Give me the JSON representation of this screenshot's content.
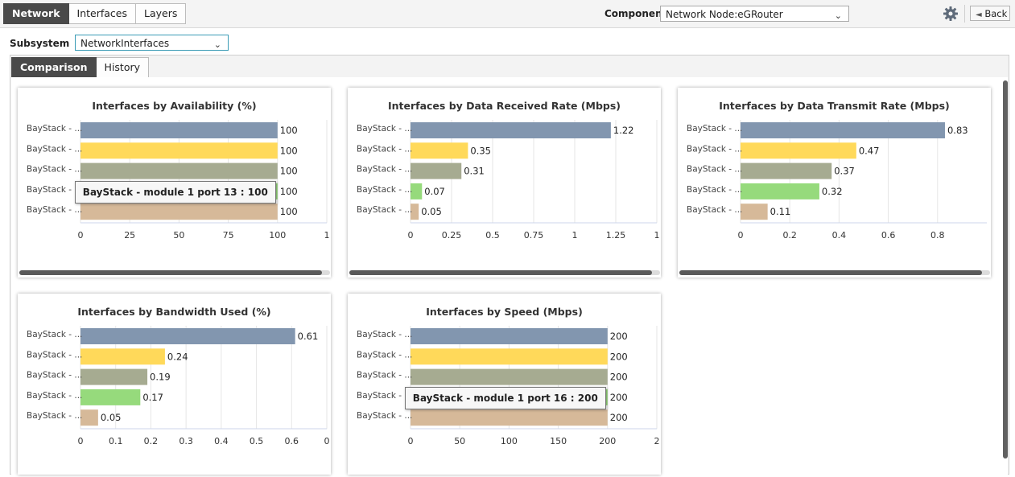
{
  "top_tabs": [
    "Network",
    "Interfaces",
    "Layers"
  ],
  "component": {
    "label": "Component",
    "value": "Network Node:eGRouter"
  },
  "back_label": "Back",
  "subsystem": {
    "label": "Subsystem",
    "value": "NetworkInterfaces"
  },
  "view_tabs": [
    "Comparison",
    "History"
  ],
  "colors": {
    "bar_colors": [
      "#8296af",
      "#ffd95a",
      "#a6ab91",
      "#96da7c",
      "#d6b999"
    ],
    "active_tab": "#4a4a4a"
  },
  "chart_data": [
    {
      "type": "bar",
      "title": "Interfaces by Availability (%)",
      "categories": [
        "BayStack - ...",
        "BayStack - ...",
        "BayStack - ...",
        "BayStack - ...",
        "BayStack - ..."
      ],
      "values": [
        100,
        100,
        100,
        100,
        100
      ],
      "value_labels": [
        "100",
        "100",
        "100",
        "100",
        "100"
      ],
      "ticks": [
        "0",
        "25",
        "50",
        "75",
        "100",
        "1"
      ],
      "xlim": [
        0,
        125
      ],
      "tooltip": {
        "text": "BayStack - module 1 port 13 : 100",
        "row": 3
      }
    },
    {
      "type": "bar",
      "title": "Interfaces by Data Received Rate (Mbps)",
      "categories": [
        "BayStack - ...",
        "BayStack - ...",
        "BayStack - ...",
        "BayStack - ...",
        "BayStack - ..."
      ],
      "values": [
        1.22,
        0.35,
        0.31,
        0.07,
        0.05
      ],
      "value_labels": [
        "1.22",
        "0.35",
        "0.31",
        "0.07",
        "0.05"
      ],
      "ticks": [
        "0",
        "0.25",
        "0.5",
        "0.75",
        "1",
        "1.25",
        "1"
      ],
      "xlim": [
        0,
        1.5
      ]
    },
    {
      "type": "bar",
      "title": "Interfaces by Data Transmit Rate (Mbps)",
      "categories": [
        "BayStack - ...",
        "BayStack - ...",
        "BayStack - ...",
        "BayStack - ...",
        "BayStack - ..."
      ],
      "values": [
        0.83,
        0.47,
        0.37,
        0.32,
        0.11
      ],
      "value_labels": [
        "0.83",
        "0.47",
        "0.37",
        "0.32",
        "0.11"
      ],
      "ticks": [
        "0",
        "0.2",
        "0.4",
        "0.6",
        "0.8"
      ],
      "xlim": [
        0,
        1.0
      ]
    },
    {
      "type": "bar",
      "title": "Interfaces by Bandwidth Used (%)",
      "categories": [
        "BayStack - ...",
        "BayStack - ...",
        "BayStack - ...",
        "BayStack - ...",
        "BayStack - ..."
      ],
      "values": [
        0.61,
        0.24,
        0.19,
        0.17,
        0.05
      ],
      "value_labels": [
        "0.61",
        "0.24",
        "0.19",
        "0.17",
        "0.05"
      ],
      "ticks": [
        "0",
        "0.1",
        "0.2",
        "0.3",
        "0.4",
        "0.5",
        "0.6",
        "0"
      ],
      "xlim": [
        0,
        0.7
      ]
    },
    {
      "type": "bar",
      "title": "Interfaces by Speed (Mbps)",
      "categories": [
        "BayStack - ...",
        "BayStack - ...",
        "BayStack - ...",
        "BayStack - ...",
        "BayStack - ..."
      ],
      "values": [
        200,
        200,
        200,
        200,
        200
      ],
      "value_labels": [
        "200",
        "200",
        "200",
        "200",
        "200"
      ],
      "ticks": [
        "0",
        "50",
        "100",
        "150",
        "200",
        "2"
      ],
      "xlim": [
        0,
        250
      ],
      "tooltip": {
        "text": "BayStack - module 1 port 16 : 200",
        "row": 3
      }
    }
  ]
}
